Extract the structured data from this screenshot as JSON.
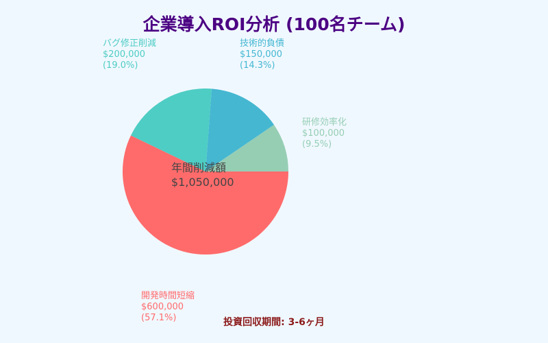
{
  "chart_data": {
    "type": "pie",
    "title": "企業導入ROI分析 (100名チーム)",
    "slices": [
      {
        "label": "研修効率化",
        "value": 100000,
        "value_label": "$100,000",
        "percent_label": "(9.5%)",
        "color": "#96ceb4"
      },
      {
        "label": "技術的負債",
        "value": 150000,
        "value_label": "$150,000",
        "percent_label": "(14.3%)",
        "color": "#45b7d1"
      },
      {
        "label": "バグ修正削減",
        "value": 200000,
        "value_label": "$200,000",
        "percent_label": "(19.0%)",
        "color": "#4ecdc4"
      },
      {
        "label": "開発時間短縮",
        "value": 600000,
        "value_label": "$600,000",
        "percent_label": "(57.1%)",
        "color": "#ff6b6b"
      }
    ],
    "center_label": {
      "title": "年間削減額",
      "value": "$1,050,000"
    },
    "footnote": "投資回収期間: 3-6ヶ月"
  }
}
